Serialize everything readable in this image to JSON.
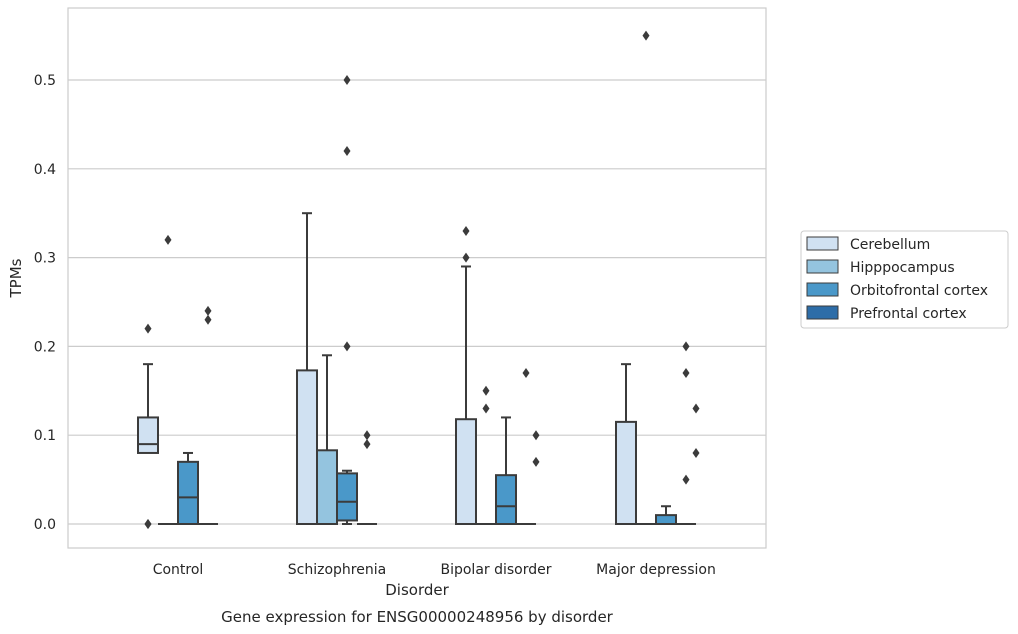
{
  "chart_data": {
    "type": "boxplot",
    "title": "",
    "caption": "Gene expression for ENSG00000248956 by disorder",
    "xlabel": "Disorder",
    "ylabel": "TPMs",
    "ylim": [
      -0.027,
      0.582
    ],
    "yticks": [
      0.0,
      0.1,
      0.2,
      0.3,
      0.4,
      0.5
    ],
    "ytick_labels": [
      "0.0",
      "0.1",
      "0.2",
      "0.3",
      "0.4",
      "0.5"
    ],
    "grid": "horizontal",
    "legend_position": "right",
    "categories": [
      "Control",
      "Schizophrenia",
      "Bipolar disorder",
      "Major depression"
    ],
    "series": [
      {
        "name": "Cerebellum",
        "color": "#d0e1f2",
        "boxes": [
          {
            "q1": 0.08,
            "median": 0.09,
            "q3": 0.12,
            "whislo": 0.08,
            "whishi": 0.18,
            "fliers": [
              0.22,
              0.0,
              0.0
            ]
          },
          {
            "q1": 0.0,
            "median": 0.0,
            "q3": 0.173,
            "whislo": 0.0,
            "whishi": 0.35,
            "fliers": []
          },
          {
            "q1": 0.0,
            "median": 0.0,
            "q3": 0.118,
            "whislo": 0.0,
            "whishi": 0.29,
            "fliers": [
              0.3,
              0.33
            ]
          },
          {
            "q1": 0.0,
            "median": 0.0,
            "q3": 0.115,
            "whislo": 0.0,
            "whishi": 0.18,
            "fliers": []
          }
        ]
      },
      {
        "name": "Hipppocampus",
        "color": "#94c4df",
        "boxes": [
          {
            "q1": 0.0,
            "median": 0.0,
            "q3": 0.0,
            "whislo": 0.0,
            "whishi": 0.0,
            "fliers": [
              0.32
            ]
          },
          {
            "q1": 0.0,
            "median": 0.0,
            "q3": 0.083,
            "whislo": 0.0,
            "whishi": 0.19,
            "fliers": []
          },
          {
            "q1": 0.0,
            "median": 0.0,
            "q3": 0.0,
            "whislo": 0.0,
            "whishi": 0.0,
            "fliers": [
              0.13,
              0.15
            ]
          },
          {
            "q1": 0.0,
            "median": 0.0,
            "q3": 0.0,
            "whislo": 0.0,
            "whishi": 0.0,
            "fliers": [
              0.55
            ]
          }
        ]
      },
      {
        "name": "Orbitofrontal cortex",
        "color": "#4a98c9",
        "boxes": [
          {
            "q1": 0.0,
            "median": 0.03,
            "q3": 0.07,
            "whislo": 0.0,
            "whishi": 0.08,
            "fliers": []
          },
          {
            "q1": 0.004,
            "median": 0.025,
            "q3": 0.057,
            "whislo": 0.0,
            "whishi": 0.06,
            "fliers": [
              0.2,
              0.42,
              0.5
            ]
          },
          {
            "q1": 0.0,
            "median": 0.02,
            "q3": 0.055,
            "whislo": 0.0,
            "whishi": 0.12,
            "fliers": []
          },
          {
            "q1": 0.0,
            "median": 0.0,
            "q3": 0.01,
            "whislo": 0.0,
            "whishi": 0.02,
            "fliers": []
          }
        ]
      },
      {
        "name": "Prefrontal cortex",
        "color": "#2d6da8",
        "boxes": [
          {
            "q1": 0.0,
            "median": 0.0,
            "q3": 0.0,
            "whislo": 0.0,
            "whishi": 0.0,
            "fliers": [
              0.23,
              0.24
            ]
          },
          {
            "q1": 0.0,
            "median": 0.0,
            "q3": 0.0,
            "whislo": 0.0,
            "whishi": 0.0,
            "fliers": [
              0.09,
              0.1
            ]
          },
          {
            "q1": 0.0,
            "median": 0.0,
            "q3": 0.0,
            "whislo": 0.0,
            "whishi": 0.0,
            "fliers": [
              0.17
            ]
          },
          {
            "q1": 0.0,
            "median": 0.0,
            "q3": 0.0,
            "whislo": 0.0,
            "whishi": 0.0,
            "fliers": [
              0.05,
              0.17,
              0.2
            ]
          }
        ]
      }
    ],
    "extra_fliers": [
      {
        "category": 2,
        "series": 3,
        "values": [
          0.07,
          0.1
        ]
      },
      {
        "category": 3,
        "series": 3,
        "values": [
          0.08,
          0.13
        ]
      }
    ]
  }
}
